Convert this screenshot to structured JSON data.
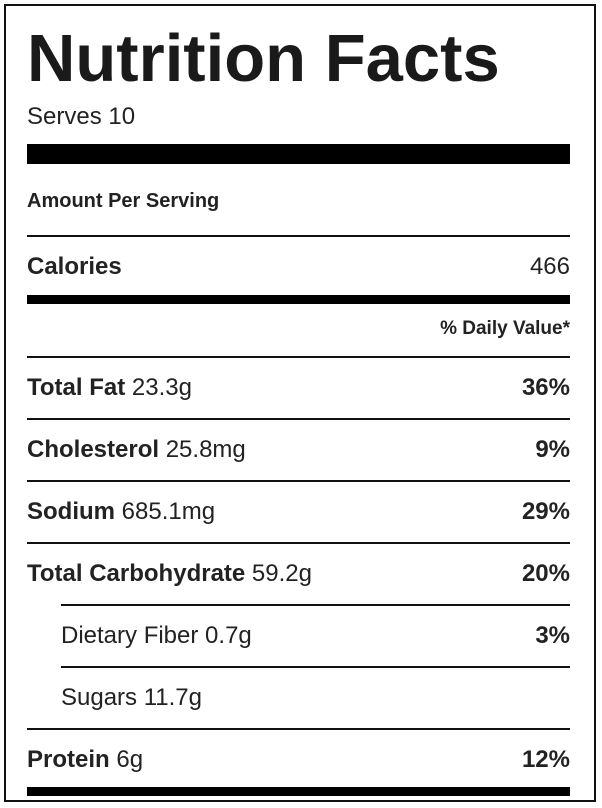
{
  "title": "Nutrition Facts",
  "serves": "Serves 10",
  "amount_per_serving": "Amount Per Serving",
  "calories": {
    "label": "Calories",
    "value": "466"
  },
  "daily_value_header": "% Daily Value*",
  "nutrients": [
    {
      "label": "Total Fat",
      "amount": "23.3g",
      "percent": "36%"
    },
    {
      "label": "Cholesterol",
      "amount": "25.8mg",
      "percent": "9%"
    },
    {
      "label": "Sodium",
      "amount": "685.1mg",
      "percent": "29%"
    },
    {
      "label": "Total Carbohydrate",
      "amount": "59.2g",
      "percent": "20%"
    },
    {
      "label": "Dietary Fiber",
      "amount": "0.7g",
      "percent": "3%"
    },
    {
      "label": "Sugars",
      "amount": "11.7g",
      "percent": ""
    },
    {
      "label": "Protein",
      "amount": "6g",
      "percent": "12%"
    }
  ]
}
